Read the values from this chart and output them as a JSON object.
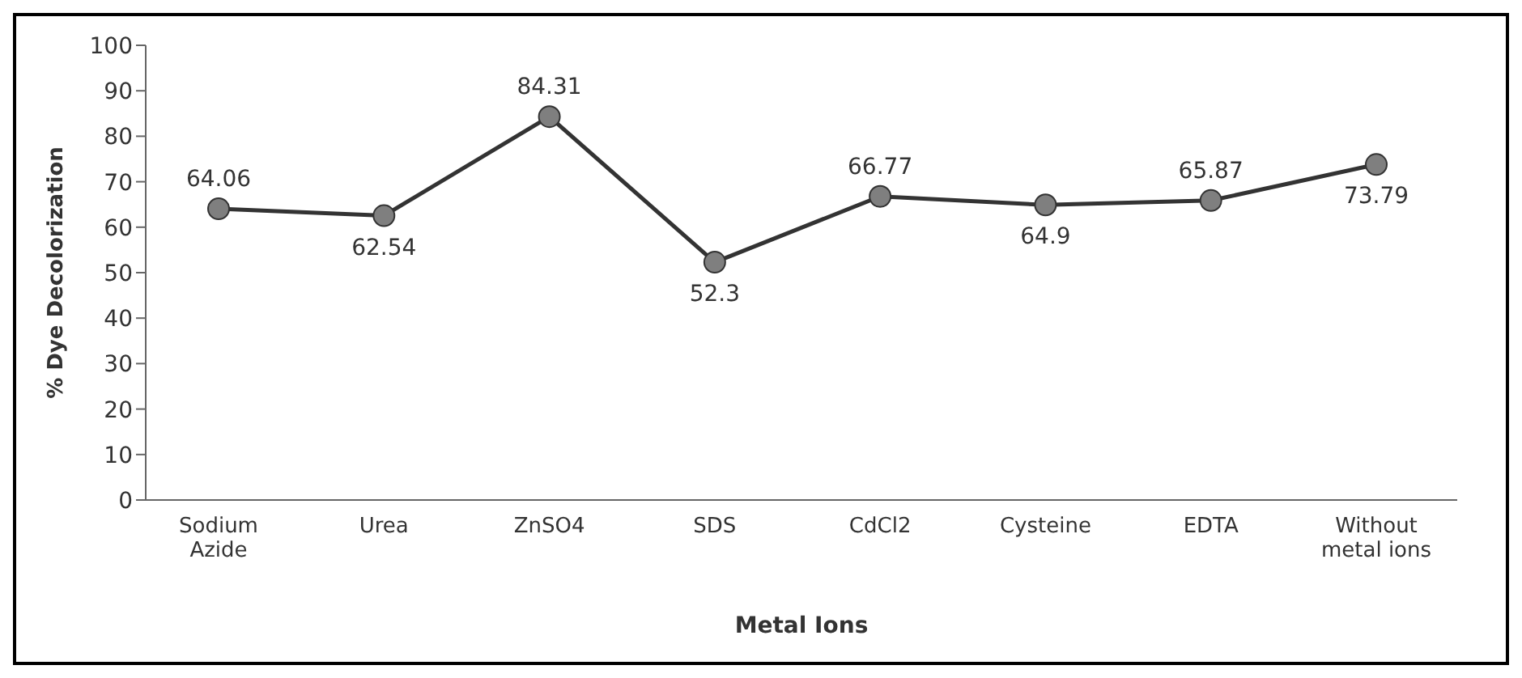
{
  "chart_data": {
    "type": "line",
    "xlabel": "Metal Ions",
    "ylabel": "% Dye Decolorization",
    "categories": [
      "Sodium Azide",
      "Urea",
      "ZnSO4",
      "SDS",
      "CdCl2",
      "Cysteine",
      "EDTA",
      "Without metal ions"
    ],
    "series": [
      {
        "color": "#333333",
        "values": [
          64.06,
          62.54,
          84.31,
          52.3,
          66.77,
          64.9,
          65.87,
          73.79
        ]
      }
    ],
    "ylim": [
      0,
      100
    ],
    "yticks": [
      0,
      10,
      20,
      30,
      40,
      50,
      60,
      70,
      80,
      90,
      100
    ],
    "grid": false,
    "legend": false,
    "marker": "circle",
    "line_style": "solid",
    "data_labels": true
  }
}
